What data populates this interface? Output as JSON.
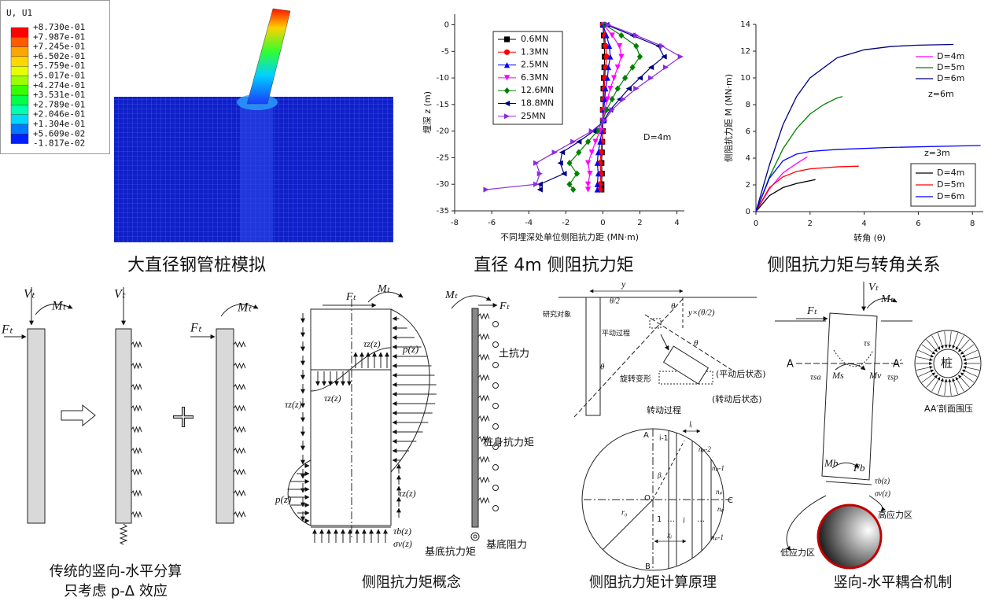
{
  "fem_panel": {
    "legend_title": "U, U1",
    "legend_values": [
      "+8.730e-01",
      "+7.987e-01",
      "+7.245e-01",
      "+6.502e-01",
      "+5.759e-01",
      "+5.017e-01",
      "+4.274e-01",
      "+3.531e-01",
      "+2.789e-01",
      "+2.046e-01",
      "+1.304e-01",
      "+5.609e-02",
      "-1.817e-02"
    ],
    "legend_colors": [
      "#ff0000",
      "#ff5a00",
      "#ffa500",
      "#ffd700",
      "#e8ff00",
      "#9cff00",
      "#38ff00",
      "#00ff48",
      "#00ffb0",
      "#00d8ff",
      "#0078ff",
      "#0020ff"
    ],
    "caption": "大直径钢管桩模拟"
  },
  "chart_data": [
    {
      "type": "profile",
      "caption": "直径 4m 侧阻抗力矩",
      "xlabel": "不同埋深处单位侧阻抗力距 (MN·m)",
      "ylabel": "埋深 z (m)",
      "annotation": "D=4m",
      "xlim": [
        -8,
        4.4
      ],
      "ylim": [
        -35,
        2
      ],
      "xticks": [
        -8,
        -6,
        -4,
        -2,
        0,
        2,
        4
      ],
      "yticks": [
        0,
        -5,
        -10,
        -15,
        -20,
        -25,
        -30,
        -35
      ],
      "y": [
        0,
        -2,
        -4,
        -6,
        -8,
        -10,
        -12,
        -14,
        -16,
        -18,
        -20,
        -22,
        -24,
        -26,
        -28,
        -30,
        -31
      ],
      "series": [
        {
          "name": "0.6MN",
          "color": "#000000",
          "marker": "square",
          "values": [
            0,
            0.05,
            0.08,
            0.1,
            0.08,
            0.05,
            0.03,
            0.02,
            0,
            0,
            0,
            -0.03,
            -0.05,
            -0.07,
            -0.05,
            -0.07,
            -0.07
          ]
        },
        {
          "name": "1.3MN",
          "color": "#ff0000",
          "marker": "circle",
          "values": [
            0,
            0.1,
            0.15,
            0.2,
            0.15,
            0.1,
            0.08,
            0.05,
            0,
            0,
            0,
            -0.05,
            -0.1,
            -0.15,
            -0.1,
            -0.15,
            -0.15
          ]
        },
        {
          "name": "2.5MN",
          "color": "#0000ff",
          "marker": "triangle-up",
          "values": [
            0,
            0.2,
            0.35,
            0.4,
            0.3,
            0.25,
            0.15,
            0.1,
            0.05,
            0,
            -0.05,
            -0.15,
            -0.25,
            -0.3,
            -0.25,
            -0.3,
            -0.3
          ]
        },
        {
          "name": "6.3MN",
          "color": "#ff00ff",
          "marker": "triangle-down",
          "values": [
            0.05,
            0.5,
            0.9,
            1.0,
            0.8,
            0.6,
            0.4,
            0.25,
            0.1,
            0,
            -0.15,
            -0.4,
            -0.6,
            -0.8,
            -0.7,
            -0.8,
            -0.8
          ]
        },
        {
          "name": "12.6MN",
          "color": "#008000",
          "marker": "diamond",
          "values": [
            0.1,
            1.0,
            1.8,
            2.0,
            1.6,
            1.2,
            0.8,
            0.5,
            0.2,
            0,
            -0.3,
            -0.8,
            -1.3,
            -1.8,
            -1.4,
            -1.8,
            -1.6
          ]
        },
        {
          "name": "18.8MN",
          "color": "#000080",
          "marker": "triangle-left",
          "values": [
            0.2,
            1.6,
            3.0,
            3.3,
            2.6,
            2.0,
            1.4,
            0.9,
            0.4,
            0.05,
            -0.5,
            -1.3,
            -2.2,
            -2.3,
            -2.1,
            -3.4,
            -3.4
          ]
        },
        {
          "name": "25MN",
          "color": "#8a2be2",
          "marker": "triangle-right",
          "values": [
            0.3,
            1.8,
            3.2,
            4.2,
            3.4,
            2.6,
            1.8,
            1.1,
            0.5,
            0.1,
            -0.6,
            -1.6,
            -2.6,
            -3.6,
            -3.4,
            -3.6,
            -6.3
          ]
        }
      ]
    },
    {
      "type": "line",
      "caption": "侧阻抗力矩与转角关系",
      "xlabel": "转角 (θ)",
      "ylabel": "侧阻抗力距 M (MN·m)",
      "annotations": [
        "z=6m",
        "z=3m"
      ],
      "xlim": [
        0,
        8.4
      ],
      "ylim": [
        0,
        14
      ],
      "xticks": [
        0,
        2,
        4,
        6,
        8
      ],
      "yticks": [
        0,
        2,
        4,
        6,
        8,
        10,
        12,
        14
      ],
      "series": [
        {
          "name": "D=4m",
          "color": "#ff00ff",
          "x": [
            0,
            0.5,
            1,
            1.5,
            1.9
          ],
          "values": [
            0,
            1.7,
            2.9,
            3.6,
            4.1
          ]
        },
        {
          "name": "D=5m",
          "color": "#008000",
          "x": [
            0,
            0.5,
            1,
            1.5,
            2,
            2.5,
            3,
            3.2
          ],
          "values": [
            0,
            2.6,
            4.7,
            6.2,
            7.3,
            8,
            8.5,
            8.6
          ]
        },
        {
          "name": "D=6m",
          "color": "#000080",
          "x": [
            0,
            0.5,
            1,
            1.5,
            2,
            3,
            4,
            5,
            6,
            7.3
          ],
          "values": [
            0,
            3.5,
            6.5,
            8.6,
            10,
            11.5,
            12.1,
            12.35,
            12.45,
            12.5
          ]
        },
        {
          "name": "D=4m",
          "color": "#000000",
          "x": [
            0,
            0.5,
            1,
            1.5,
            2.2
          ],
          "values": [
            0,
            1.2,
            1.8,
            2.1,
            2.4
          ]
        },
        {
          "name": "D=5m",
          "color": "#ff0000",
          "x": [
            0,
            0.5,
            1,
            1.5,
            2,
            3,
            3.8
          ],
          "values": [
            0,
            1.8,
            2.6,
            3,
            3.2,
            3.35,
            3.4
          ]
        },
        {
          "name": "D=6m",
          "color": "#0000ff",
          "x": [
            0,
            0.5,
            1,
            1.5,
            2,
            3,
            5,
            8.3
          ],
          "values": [
            0,
            2.5,
            3.8,
            4.3,
            4.5,
            4.65,
            4.8,
            4.95
          ]
        }
      ]
    }
  ],
  "split_panel": {
    "vt": "Vₜ",
    "mt": "Mₜ",
    "ft": "Fₜ",
    "caption_line1": "传统的竖向-水平分算",
    "caption_line2": "只考虑 p-Δ 效应"
  },
  "concept_panel": {
    "ft": "Fₜ",
    "mt": "Mₜ",
    "tau_z": "τz(z)",
    "p": "p(z)",
    "tau_b": "τb(z)",
    "sigma_v": "σv(z)",
    "caption": "侧阻抗力矩概念"
  },
  "spring_panel": {
    "mt": "Mₜ",
    "ft": "Fₜ",
    "soil": "土抗力",
    "shaft": "桩身抗力矩",
    "base_moment": "基底抗力矩",
    "base_resist": "基底阻力"
  },
  "calc_panel": {
    "y": "y",
    "half_theta": "θ/2",
    "theta": "θ",
    "offset": "y×(θ/2)",
    "object": "研究对象",
    "translate": "平动过程",
    "rotate_deform": "旋转变形",
    "after_translate": "(平动后状态)",
    "after_rotate": "(转动后状态)",
    "rotation": "转动过程",
    "a": "A",
    "i_minus": "i-1",
    "li": "lᵢ",
    "np_minus2": "nₚ-2",
    "np_minus1": "nₚ-1",
    "np": "nₚ",
    "o": "O",
    "c": "C",
    "r0": "r₀",
    "beta": "βᵢ",
    "one": "1",
    "dots": "…",
    "i": "i",
    "xi": "xᵢ",
    "b": "B",
    "caption": "侧阻抗力矩计算原理"
  },
  "coupling_panel": {
    "vt": "Vₜ",
    "mt": "Mₜ",
    "ft": "Fₜ",
    "a": "A",
    "a_prime": "A′",
    "tau_s": "τs",
    "tau_sa": "τsa",
    "ms": "Ms",
    "mv": "Mv",
    "tau_sp": "τsp",
    "pile": "桩",
    "section": "AA′剖面围压",
    "mb": "Mb",
    "fb": "Fb",
    "tau_b": "τb(z)",
    "sigma_v": "σv(z)",
    "high": "高应力区",
    "low": "低应力区",
    "caption": "竖向-水平耦合机制"
  }
}
